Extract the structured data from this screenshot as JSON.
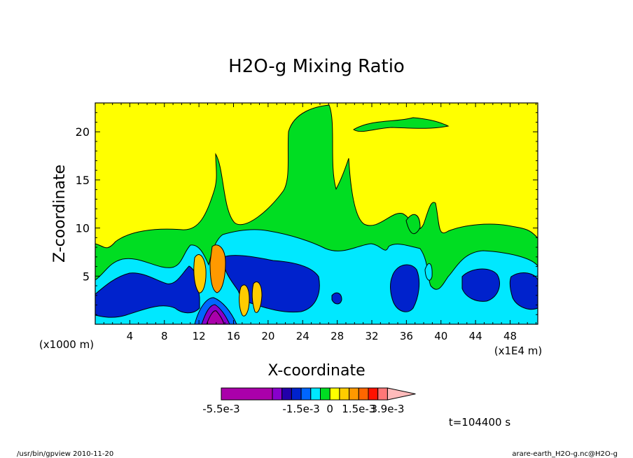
{
  "chart_data": {
    "type": "heatmap",
    "title": "H2O-g Mixing Ratio",
    "xlabel": "X-coordinate",
    "ylabel": "Z-coordinate",
    "x_unit_left": "(x1000 m)",
    "x_unit_right": "(x1E4 m)",
    "xlim": [
      0,
      51.2
    ],
    "ylim": [
      0,
      23
    ],
    "x_ticks": [
      4,
      8,
      12,
      16,
      20,
      24,
      28,
      32,
      36,
      40,
      44,
      48
    ],
    "y_ticks": [
      5,
      10,
      15,
      20
    ],
    "levels": [
      -0.0055,
      -0.0035,
      -0.0025,
      -0.002,
      -0.0015,
      -0.001,
      -0.0005,
      0,
      0.0005,
      0.001,
      0.0015,
      0.002,
      0.0025,
      0.0039,
      0.0055
    ],
    "colors": [
      "#aa00aa",
      "#8800cc",
      "#2200aa",
      "#0022cc",
      "#0066ff",
      "#00e8ff",
      "#00dd22",
      "#ffff00",
      "#ffcc00",
      "#ff9900",
      "#ff6600",
      "#ff1100",
      "#ff7777",
      "#ffbbbb"
    ],
    "colorbar_labels": [
      {
        "text": "-5.5e-3",
        "level": 0
      },
      {
        "text": "-1.5e-3",
        "level": 4
      },
      {
        "text": "0",
        "level": 7
      },
      {
        "text": "1.5e-3",
        "level": 10
      },
      {
        "text": "3.9e-3",
        "level": 13
      }
    ],
    "time_label": "t=104400 s"
  },
  "footer": {
    "left": "/usr/bin/gpview   2010-11-20",
    "right": "arare-earth_H2O-g.nc@H2O-g"
  }
}
